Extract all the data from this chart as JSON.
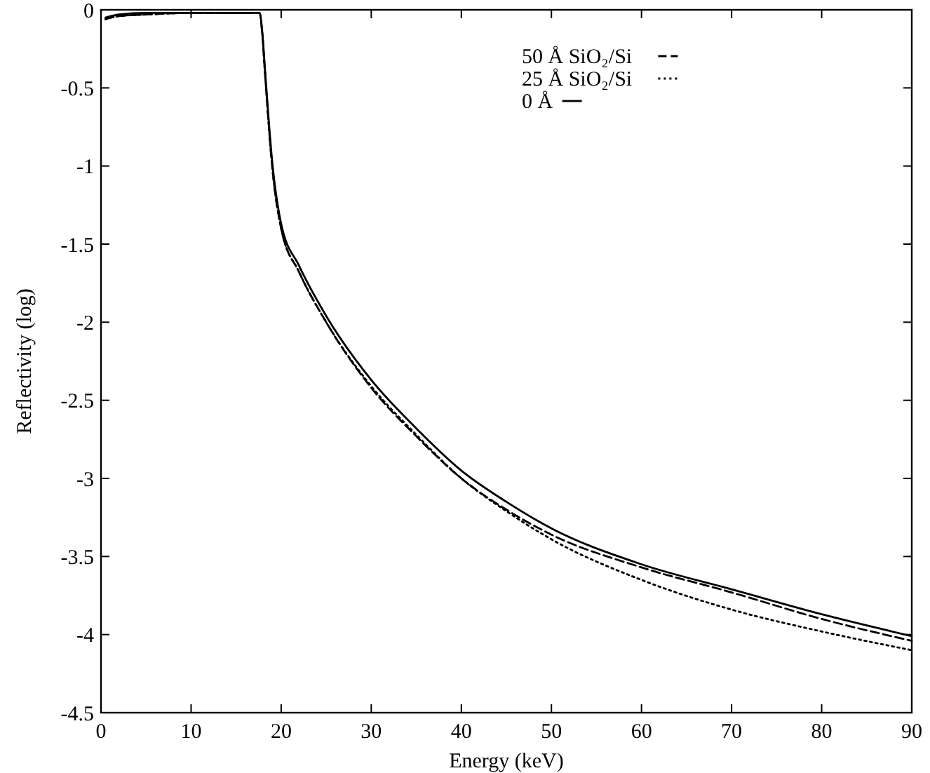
{
  "chart_data": {
    "type": "line",
    "xlabel": "Energy (keV)",
    "ylabel": "Reflectivity (log)",
    "xlim": [
      0,
      90
    ],
    "ylim": [
      -4.5,
      0
    ],
    "xticks": [
      0,
      10,
      20,
      30,
      40,
      50,
      60,
      70,
      80,
      90
    ],
    "yticks": [
      0,
      -0.5,
      -1,
      -1.5,
      -2,
      -2.5,
      -3,
      -3.5,
      -4,
      -4.5
    ],
    "legend": "top right",
    "grid": false,
    "series": [
      {
        "name": "50 Å SiO₂/Si",
        "color": "#000000",
        "line_style": "dashed",
        "x": [
          0.5,
          2,
          5,
          10,
          15,
          17.6,
          17.9,
          18.2,
          19,
          20,
          22,
          25,
          30,
          35,
          40,
          45,
          50,
          60,
          70,
          80,
          90
        ],
        "values": [
          -0.06,
          -0.04,
          -0.03,
          -0.02,
          -0.02,
          -0.02,
          -0.15,
          -0.4,
          -1.0,
          -1.4,
          -1.68,
          -2.0,
          -2.42,
          -2.73,
          -3.0,
          -3.2,
          -3.36,
          -3.57,
          -3.73,
          -3.9,
          -4.04
        ]
      },
      {
        "name": "25 Å SiO₂/Si",
        "color": "#000000",
        "line_style": "dotted",
        "x": [
          0.5,
          2,
          5,
          10,
          15,
          17.6,
          17.9,
          18.2,
          19,
          20,
          22,
          25,
          30,
          35,
          40,
          45,
          50,
          60,
          70,
          80,
          90
        ],
        "values": [
          -0.06,
          -0.04,
          -0.03,
          -0.02,
          -0.02,
          -0.02,
          -0.15,
          -0.4,
          -1.0,
          -1.4,
          -1.68,
          -2.0,
          -2.41,
          -2.72,
          -3.0,
          -3.21,
          -3.39,
          -3.65,
          -3.84,
          -3.98,
          -4.1
        ]
      },
      {
        "name": "0 Å",
        "color": "#000000",
        "line_style": "solid",
        "x": [
          0.5,
          2,
          5,
          10,
          15,
          17.6,
          17.9,
          18.2,
          19,
          20,
          22,
          25,
          30,
          35,
          40,
          45,
          50,
          60,
          70,
          80,
          90
        ],
        "values": [
          -0.05,
          -0.03,
          -0.02,
          -0.02,
          -0.02,
          -0.02,
          -0.14,
          -0.38,
          -0.97,
          -1.37,
          -1.64,
          -1.96,
          -2.37,
          -2.68,
          -2.95,
          -3.15,
          -3.32,
          -3.55,
          -3.71,
          -3.87,
          -4.01
        ]
      }
    ]
  }
}
